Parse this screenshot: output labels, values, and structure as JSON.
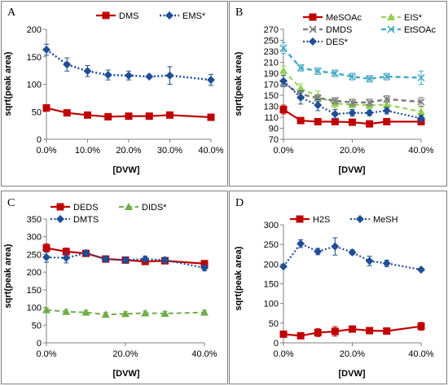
{
  "chart_data": [
    {
      "type": "line",
      "panel": "A",
      "xlabel": "[DVW]",
      "ylabel": "sqrt(peak area)",
      "x": [
        0,
        5,
        10,
        15,
        20,
        25,
        30,
        40
      ],
      "xticks": [
        0,
        10,
        20,
        30,
        40
      ],
      "xtick_labels": [
        "0.0%",
        "10.0%",
        "20.0%",
        "30.0%",
        "40.0%"
      ],
      "xlim": [
        0,
        40
      ],
      "ylim": [
        0,
        200
      ],
      "yticks": [
        0,
        50,
        100,
        150,
        200
      ],
      "legend_position": "top-right",
      "legend_columns": 2,
      "series": [
        {
          "name": "DMS",
          "values": [
            57,
            48,
            44,
            41,
            42,
            42,
            44,
            40
          ],
          "errors": [
            4,
            4,
            4,
            4,
            4,
            4,
            5,
            4
          ],
          "color": "#c00000",
          "marker": "square",
          "dash": "solid",
          "width": 2.2
        },
        {
          "name": "EMS*",
          "values": [
            163,
            136,
            124,
            117,
            116,
            114,
            116,
            108
          ],
          "errors": [
            10,
            12,
            10,
            9,
            8,
            3,
            16,
            10
          ],
          "color": "#1f4e96",
          "marker": "diamond",
          "dash": "dot",
          "width": 2.5
        }
      ]
    },
    {
      "type": "line",
      "panel": "B",
      "xlabel": "[DVW]",
      "ylabel": "sqrt(peak area)",
      "x": [
        0,
        5,
        10,
        15,
        20,
        25,
        30,
        40
      ],
      "xticks": [
        0,
        20,
        40
      ],
      "xtick_labels": [
        "0.0%",
        "20.0%",
        "40.0%"
      ],
      "xlim": [
        0,
        40
      ],
      "ylim": [
        70,
        270
      ],
      "yticks": [
        70,
        90,
        110,
        130,
        150,
        170,
        190,
        210,
        230,
        250,
        270
      ],
      "legend_position": "top",
      "legend_columns": 2,
      "series": [
        {
          "name": "MeSOAc",
          "values": [
            124,
            104,
            102,
            102,
            101,
            98,
            102,
            102
          ],
          "errors": [
            8,
            4,
            3,
            3,
            3,
            4,
            4,
            3
          ],
          "color": "#c00000",
          "marker": "square",
          "dash": "solid",
          "width": 2.2
        },
        {
          "name": "EIS*",
          "values": [
            195,
            163,
            148,
            135,
            133,
            132,
            133,
            120
          ],
          "errors": [
            8,
            8,
            10,
            8,
            6,
            6,
            6,
            8
          ],
          "color": "#92d050",
          "marker": "triangle",
          "dash": "dash",
          "width": 2
        },
        {
          "name": "DMDS",
          "values": [
            172,
            152,
            145,
            140,
            137,
            137,
            143,
            138
          ],
          "errors": [
            6,
            6,
            6,
            6,
            6,
            6,
            6,
            8
          ],
          "color": "#7f7f7f",
          "marker": "x",
          "dash": "dash",
          "width": 2.6
        },
        {
          "name": "EtSOAc",
          "values": [
            236,
            200,
            194,
            190,
            184,
            180,
            184,
            182
          ],
          "errors": [
            10,
            6,
            6,
            6,
            6,
            6,
            6,
            12
          ],
          "color": "#4bacc6",
          "marker": "x",
          "dash": "dash",
          "width": 2.6
        },
        {
          "name": "DES*",
          "values": [
            176,
            146,
            132,
            116,
            118,
            118,
            122,
            108
          ],
          "errors": [
            10,
            12,
            10,
            8,
            6,
            5,
            6,
            6
          ],
          "color": "#1f4e96",
          "marker": "diamond",
          "dash": "dot",
          "width": 2.2
        }
      ]
    },
    {
      "type": "line",
      "panel": "C",
      "xlabel": "[DVW]",
      "ylabel": "sqrt(peak area)",
      "x": [
        0,
        5,
        10,
        15,
        20,
        25,
        30,
        40
      ],
      "xticks": [
        0,
        20,
        40
      ],
      "xtick_labels": [
        "0.0%",
        "20.0%",
        "40.0%"
      ],
      "xlim": [
        0,
        40
      ],
      "ylim": [
        0,
        350
      ],
      "yticks": [
        0,
        50,
        100,
        150,
        200,
        250,
        300,
        350
      ],
      "legend_position": "top",
      "legend_columns": 2,
      "series": [
        {
          "name": "DEDS",
          "values": [
            268,
            258,
            253,
            237,
            234,
            230,
            232,
            224
          ],
          "errors": [
            12,
            10,
            8,
            8,
            8,
            8,
            8,
            8
          ],
          "color": "#c00000",
          "marker": "square",
          "dash": "solid",
          "width": 2.2
        },
        {
          "name": "DIDS*",
          "values": [
            93,
            88,
            86,
            80,
            82,
            84,
            83,
            86
          ],
          "errors": [
            6,
            6,
            6,
            6,
            6,
            6,
            6,
            6
          ],
          "color": "#70ad47",
          "marker": "triangle",
          "dash": "dash",
          "width": 2
        },
        {
          "name": "DMTS",
          "values": [
            242,
            240,
            254,
            237,
            234,
            237,
            234,
            212
          ],
          "errors": [
            14,
            14,
            8,
            8,
            8,
            8,
            8,
            8
          ],
          "color": "#1f4e96",
          "marker": "diamond",
          "dash": "dot",
          "width": 2.2
        }
      ]
    },
    {
      "type": "line",
      "panel": "D",
      "xlabel": "[DVW]",
      "ylabel": "sqrt(peak area)",
      "x": [
        0,
        5,
        10,
        15,
        20,
        25,
        30,
        40
      ],
      "xticks": [
        0,
        20,
        40
      ],
      "xtick_labels": [
        "0.0%",
        "20.0%",
        "40.0%"
      ],
      "xlim": [
        0,
        40
      ],
      "ylim": [
        0,
        300
      ],
      "yticks": [
        0,
        50,
        100,
        150,
        200,
        250,
        300
      ],
      "legend_position": "top",
      "legend_columns": 2,
      "series": [
        {
          "name": "H2S",
          "values": [
            22,
            18,
            26,
            29,
            35,
            31,
            30,
            42
          ],
          "errors": [
            6,
            4,
            10,
            12,
            8,
            7,
            6,
            10
          ],
          "color": "#c00000",
          "marker": "square",
          "dash": "solid",
          "width": 2.2
        },
        {
          "name": "MeSH",
          "values": [
            194,
            252,
            232,
            245,
            230,
            208,
            202,
            186
          ],
          "errors": [
            4,
            10,
            8,
            22,
            6,
            12,
            8,
            4
          ],
          "color": "#1f4e96",
          "marker": "diamond",
          "dash": "dot",
          "width": 2.2
        }
      ]
    }
  ]
}
